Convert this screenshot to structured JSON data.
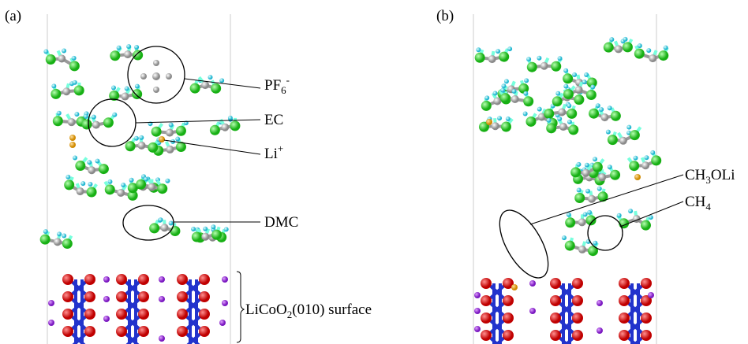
{
  "panels": [
    {
      "tag": "(a)",
      "labels": [
        {
          "base": "PF",
          "sub": "6",
          "sup": "-"
        },
        {
          "base": "EC"
        },
        {
          "base": "Li",
          "sup": "+"
        },
        {
          "base": "DMC"
        },
        {
          "base": "LiCoO",
          "sub": "2",
          "tail": "(010) surface"
        }
      ]
    },
    {
      "tag": "(b)",
      "labels": [
        {
          "base": "CH",
          "sub": "3",
          "tail": "OLi"
        },
        {
          "base": "CH",
          "sub": "4"
        }
      ]
    }
  ]
}
